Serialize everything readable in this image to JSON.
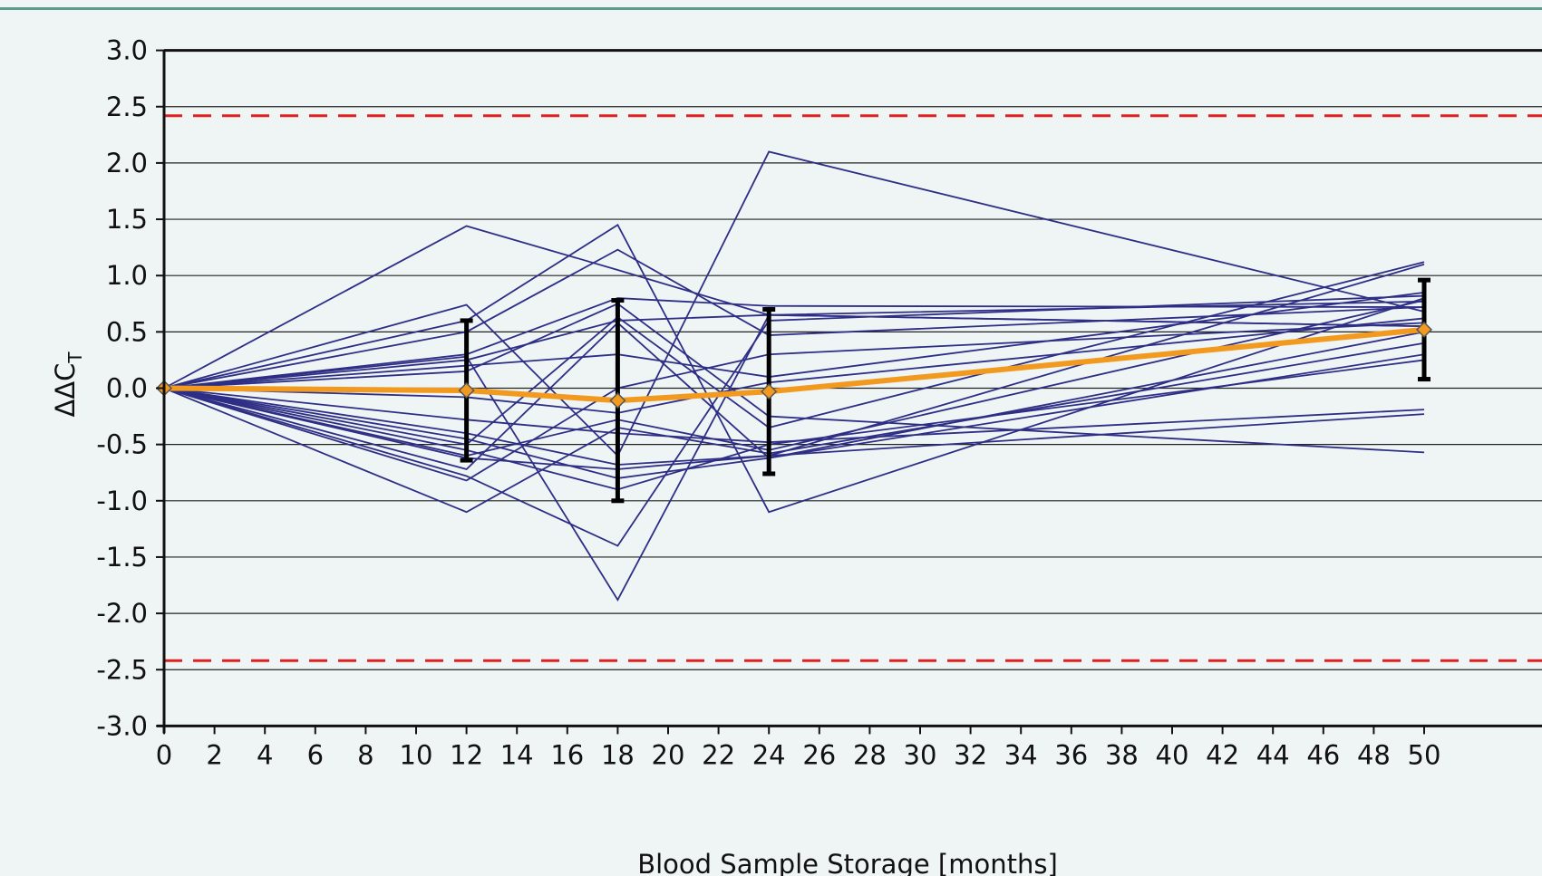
{
  "chart_data": {
    "type": "line",
    "xlabel": "Blood Sample Storage [months]",
    "ylabel": "ΔΔC",
    "ylabel_sub": "T",
    "xlim": [
      0,
      50
    ],
    "ylim": [
      -3.0,
      3.0
    ],
    "x_ticks": [
      0,
      2,
      4,
      6,
      8,
      10,
      12,
      14,
      16,
      18,
      20,
      22,
      24,
      26,
      28,
      30,
      32,
      34,
      36,
      38,
      40,
      42,
      44,
      46,
      48,
      50
    ],
    "x_tick_labels": [
      "0",
      "2",
      "4",
      "6",
      "8",
      "10",
      "12",
      "14",
      "16",
      "18",
      "20",
      "22",
      "24",
      "26",
      "28",
      "30",
      "32",
      "34",
      "36",
      "38",
      "40",
      "42",
      "44",
      "46",
      "48",
      "50"
    ],
    "y_ticks": [
      3.0,
      2.5,
      2.0,
      1.5,
      1.0,
      0.5,
      0.0,
      -0.5,
      -1.0,
      -1.5,
      -2.0,
      -2.5,
      -3.0
    ],
    "y_tick_labels": [
      "3.0",
      "2.5",
      "2.0",
      "1.5",
      "1.0",
      "0.5",
      "0.0",
      "-0.5",
      "-1.0",
      "-1.5",
      "-2.0",
      "-2.5",
      "-3.0"
    ],
    "grid": "horizontal",
    "threshold_lines": [
      2.42,
      -2.42
    ],
    "x": [
      0,
      12,
      18,
      24,
      50
    ],
    "individual_series": [
      {
        "values": [
          0,
          1.44,
          1.05,
          0.65,
          0.55
        ]
      },
      {
        "values": [
          0,
          0.74,
          -0.6,
          2.1,
          0.68
        ]
      },
      {
        "values": [
          0,
          0.6,
          1.45,
          -1.1,
          0.8
        ]
      },
      {
        "values": [
          0,
          0.5,
          1.23,
          0.47,
          0.72
        ]
      },
      {
        "values": [
          0,
          0.3,
          0.8,
          0.73,
          0.72
        ]
      },
      {
        "values": [
          0,
          0.25,
          0.6,
          0.65,
          0.55
        ]
      },
      {
        "values": [
          0,
          0.2,
          0.3,
          0.1,
          0.85
        ]
      },
      {
        "values": [
          0,
          0.15,
          0.75,
          -0.25,
          -0.57
        ]
      },
      {
        "values": [
          0,
          -0.08,
          -0.22,
          0.05,
          0.62
        ]
      },
      {
        "values": [
          0,
          -0.28,
          -0.4,
          -0.48,
          -0.19
        ]
      },
      {
        "values": [
          0,
          -0.4,
          -0.68,
          -0.6,
          -0.23
        ]
      },
      {
        "values": [
          0,
          -0.45,
          -0.8,
          -0.62,
          0.3
        ]
      },
      {
        "values": [
          0,
          -0.55,
          -0.9,
          -0.5,
          0.25
        ]
      },
      {
        "values": [
          0,
          -0.6,
          -0.28,
          -0.55,
          0.78
        ]
      },
      {
        "values": [
          0,
          -0.72,
          0.58,
          -0.62,
          0.5
        ]
      },
      {
        "values": [
          0,
          -0.78,
          -1.4,
          0.6,
          0.82
        ]
      },
      {
        "values": [
          0,
          -1.1,
          -0.35,
          -0.58,
          0.4
        ]
      },
      {
        "values": [
          0,
          0.28,
          -1.88,
          0.65,
          0.77
        ]
      },
      {
        "values": [
          0,
          -0.5,
          0.63,
          -0.35,
          1.12
        ]
      },
      {
        "values": [
          0,
          -0.62,
          -0.72,
          -0.6,
          1.1
        ]
      },
      {
        "values": [
          0,
          -0.82,
          0.0,
          0.3,
          0.58
        ]
      }
    ],
    "mean_series": {
      "values": [
        0,
        -0.02,
        -0.11,
        -0.03,
        0.52
      ],
      "error": [
        0,
        0.62,
        0.89,
        0.73,
        0.44
      ],
      "color": "#f29a1f"
    },
    "colors": {
      "individual": "#2e2e86",
      "error_bar": "#000000",
      "threshold": "#e02020",
      "grid": "#000000",
      "marker_fill": "#f29a1f",
      "marker_stroke": "#555555"
    }
  }
}
